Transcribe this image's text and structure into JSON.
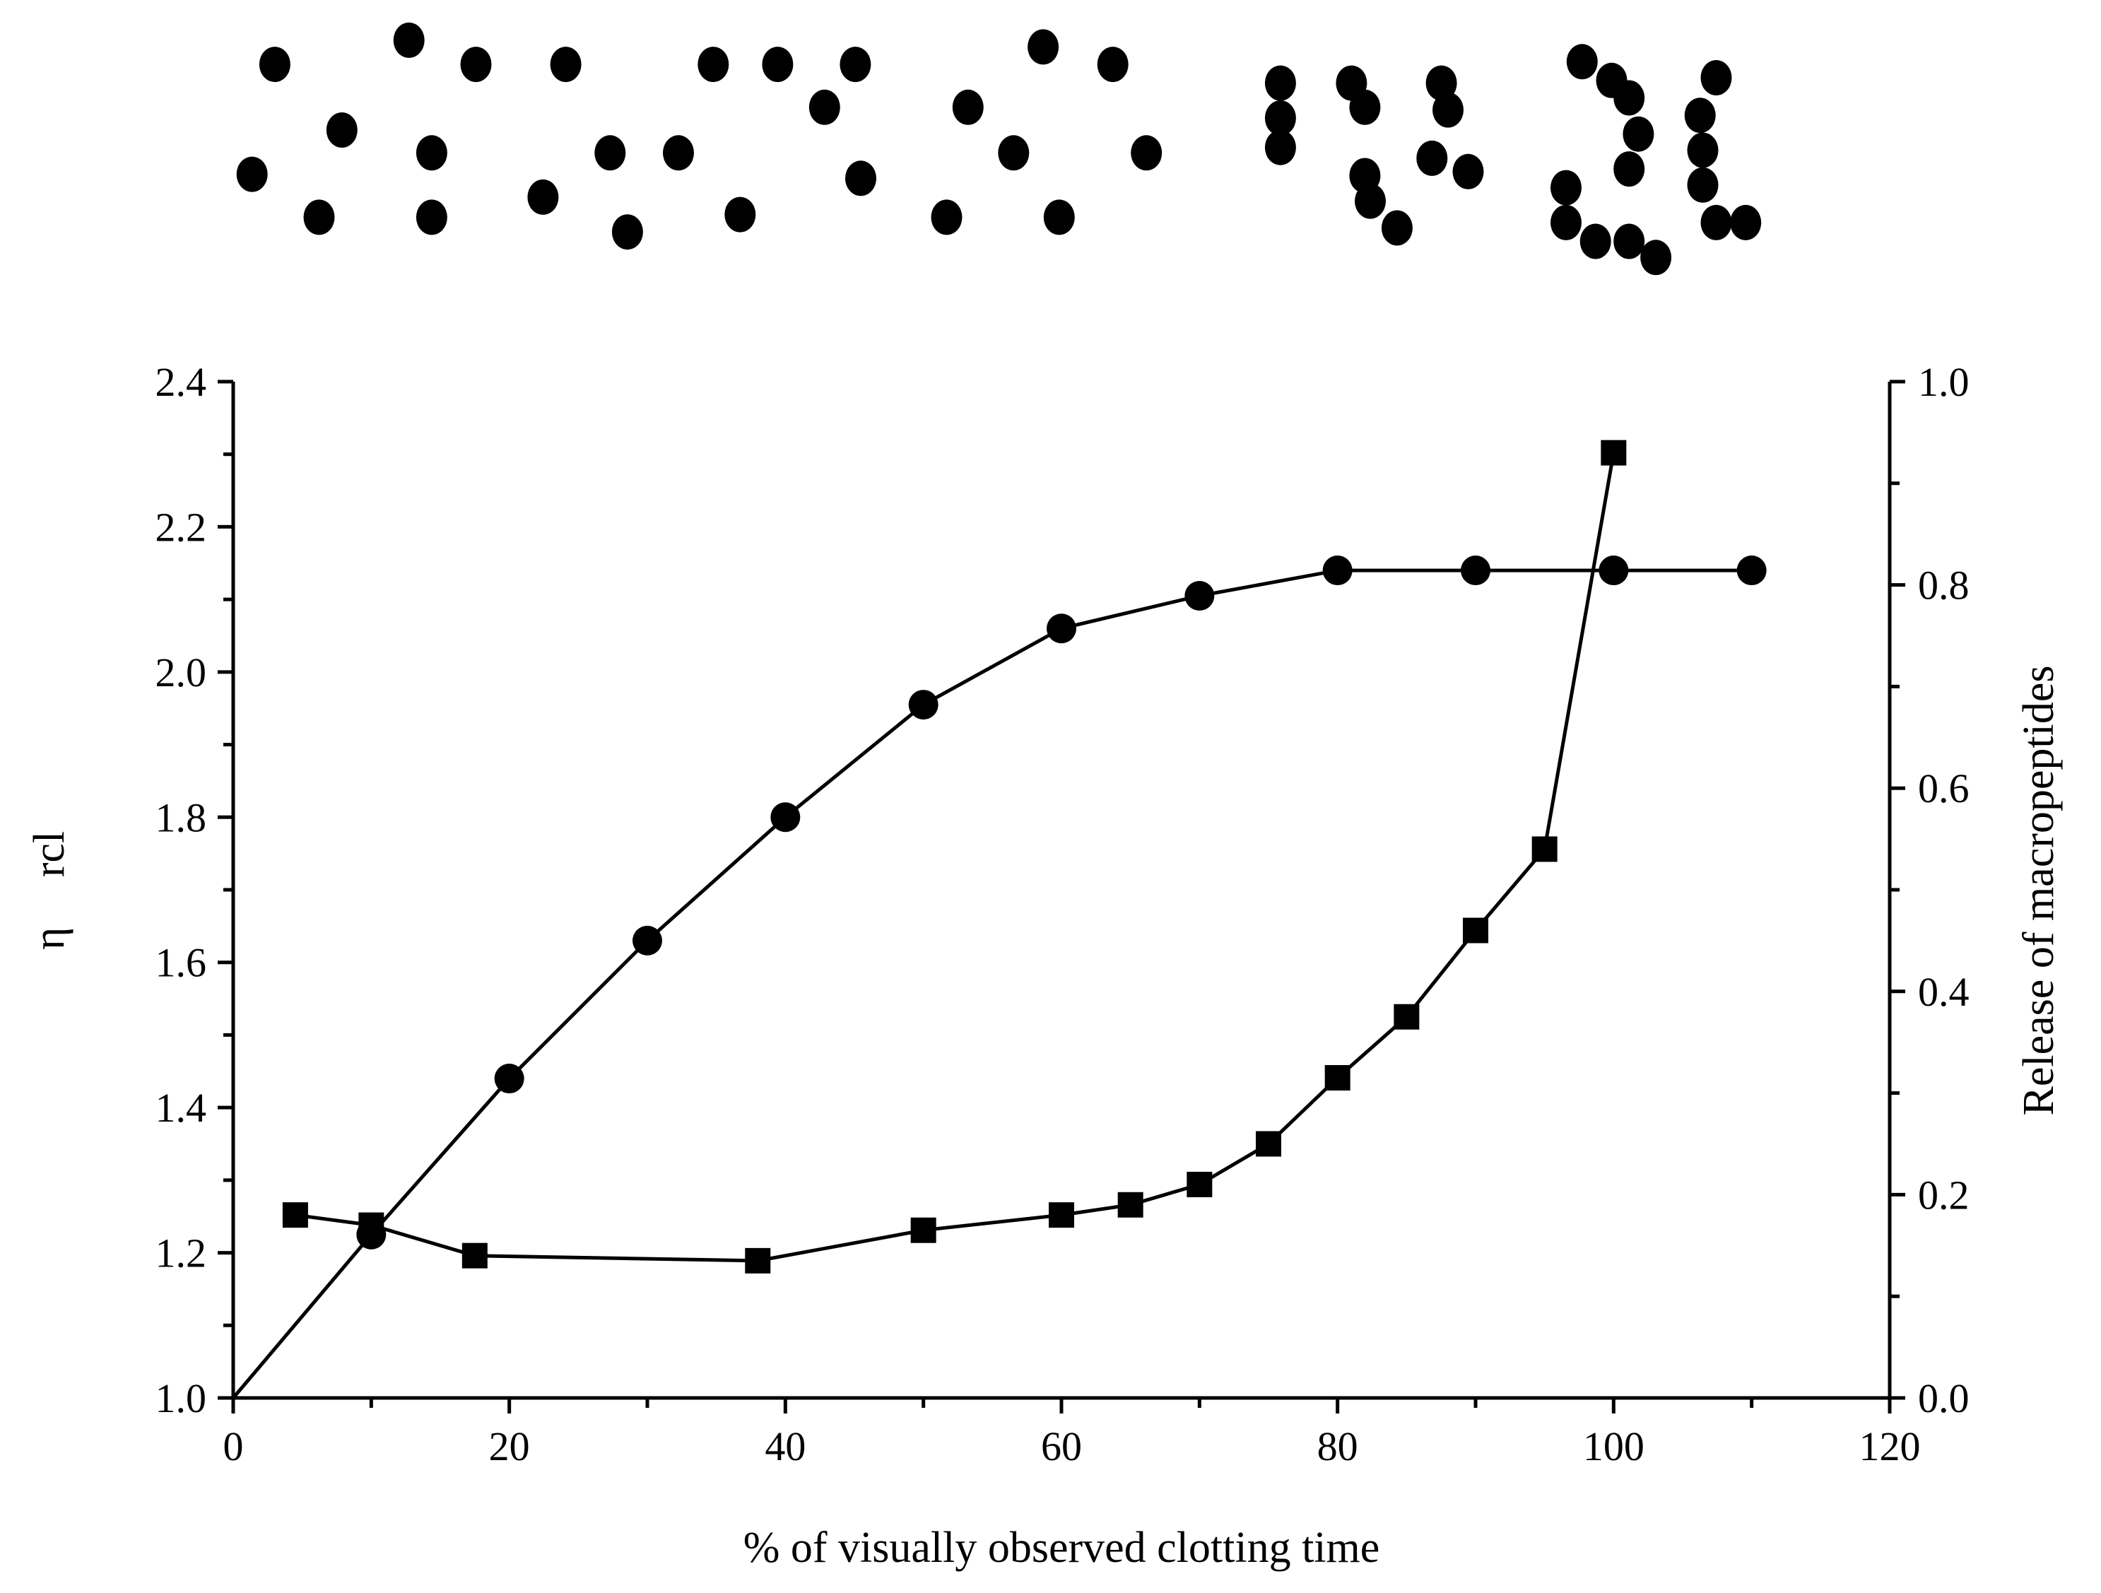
{
  "chart_data": {
    "type": "line",
    "title": "",
    "xlabel": "% of visually observed clotting time",
    "ylabel_left_symbol": "η",
    "ylabel_left_subscript": "rcl",
    "ylabel_right": "Release of macropeptides",
    "xlim": [
      0,
      120
    ],
    "ylim_left": [
      1.0,
      2.4
    ],
    "ylim_right": [
      0.0,
      1.0
    ],
    "x_ticks": [
      "0",
      "20",
      "40",
      "60",
      "80",
      "100",
      "120"
    ],
    "y_left_ticks": [
      "1.0",
      "1.2",
      "1.4",
      "1.6",
      "1.8",
      "2.0",
      "2.2",
      "2.4"
    ],
    "y_right_ticks": [
      "0.0",
      "0.2",
      "0.4",
      "0.6",
      "0.8",
      "1.0"
    ],
    "grid": false,
    "legend": "none",
    "series": [
      {
        "axis": "left",
        "marker": "circle",
        "x": [
          0,
          10,
          20,
          30,
          40,
          50,
          60,
          70,
          80,
          90,
          100,
          110
        ],
        "y": [
          1.0,
          1.225,
          1.44,
          1.63,
          1.8,
          1.955,
          2.06,
          2.105,
          2.14,
          2.14,
          2.14,
          2.14
        ]
      },
      {
        "axis": "right",
        "marker": "square",
        "x": [
          4.5,
          10,
          17.5,
          38,
          50,
          60,
          65,
          70,
          75,
          80,
          85,
          90,
          95,
          100
        ],
        "y": [
          0.18,
          0.17,
          0.14,
          0.135,
          0.165,
          0.18,
          0.19,
          0.21,
          0.25,
          0.315,
          0.375,
          0.46,
          0.54,
          0.93
        ]
      }
    ]
  },
  "particles": {
    "description_free_panel": true,
    "groups": [
      {
        "stage": "dispersed",
        "points": [
          [
            205,
            48
          ],
          [
            305,
            30
          ],
          [
            355,
            48
          ],
          [
            422,
            48
          ],
          [
            532,
            48
          ],
          [
            580,
            48
          ],
          [
            638,
            48
          ],
          [
            778,
            35
          ],
          [
            830,
            48
          ],
          [
            255,
            97
          ],
          [
            615,
            80
          ],
          [
            722,
            80
          ],
          [
            188,
            130
          ],
          [
            322,
            114
          ],
          [
            455,
            114
          ],
          [
            506,
            114
          ],
          [
            756,
            114
          ],
          [
            855,
            114
          ],
          [
            642,
            133
          ],
          [
            405,
            147
          ],
          [
            238,
            162
          ],
          [
            322,
            162
          ],
          [
            468,
            173
          ],
          [
            552,
            160
          ],
          [
            706,
            162
          ],
          [
            790,
            162
          ]
        ]
      },
      {
        "stage": "chains",
        "points": [
          [
            955,
            62
          ],
          [
            955,
            88
          ],
          [
            955,
            110
          ],
          [
            1008,
            62
          ],
          [
            1018,
            80
          ],
          [
            1075,
            62
          ],
          [
            1080,
            82
          ],
          [
            1068,
            118
          ],
          [
            1095,
            128
          ],
          [
            1018,
            131
          ],
          [
            1022,
            150
          ],
          [
            1042,
            170
          ]
        ]
      },
      {
        "stage": "aggregates",
        "points": [
          [
            1180,
            46
          ],
          [
            1202,
            60
          ],
          [
            1215,
            73
          ],
          [
            1222,
            100
          ],
          [
            1215,
            126
          ],
          [
            1280,
            58
          ],
          [
            1268,
            86
          ],
          [
            1270,
            112
          ],
          [
            1270,
            138
          ],
          [
            1168,
            140
          ],
          [
            1168,
            166
          ],
          [
            1190,
            180
          ],
          [
            1215,
            180
          ],
          [
            1235,
            192
          ],
          [
            1280,
            166
          ],
          [
            1302,
            166
          ]
        ]
      }
    ]
  }
}
